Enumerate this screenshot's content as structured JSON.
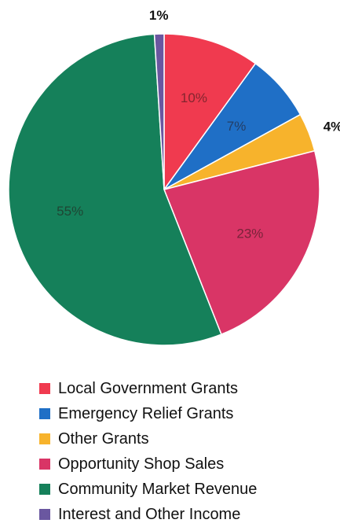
{
  "chart_data": {
    "type": "pie",
    "title": "",
    "start_angle_deg": 0,
    "direction": "clockwise",
    "slices": [
      {
        "name": "Local Government Grants",
        "value": 10,
        "label": "10%",
        "color": "#f03a4f",
        "label_style": "inside"
      },
      {
        "name": "Emergency Relief Grants",
        "value": 7,
        "label": "7%",
        "color": "#1f6fc6",
        "label_style": "inside"
      },
      {
        "name": "Other Grants",
        "value": 4,
        "label": "4%",
        "color": "#f7b32c",
        "label_style": "outside"
      },
      {
        "name": "Opportunity Shop Sales",
        "value": 23,
        "label": "23%",
        "color": "#d93566",
        "label_style": "inside"
      },
      {
        "name": "Community Market Revenue",
        "value": 55,
        "label": "55%",
        "color": "#15805a",
        "label_style": "inside"
      },
      {
        "name": "Interest and Other Income",
        "value": 1,
        "label": "1%",
        "color": "#6a57a0",
        "label_style": "outside"
      }
    ],
    "legend_position": "bottom"
  }
}
